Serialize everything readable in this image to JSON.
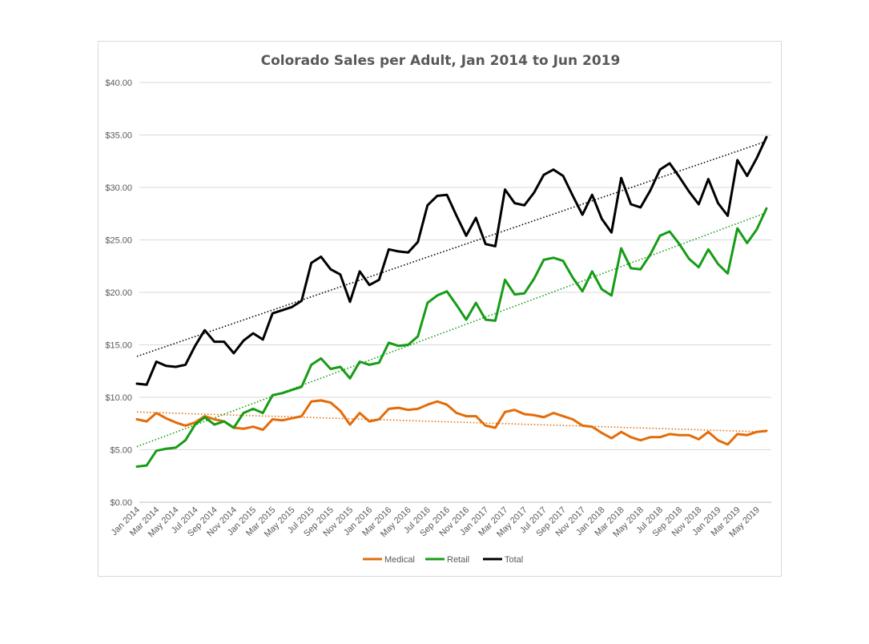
{
  "chart_data": {
    "type": "line",
    "title": "Colorado  Sales per Adult, Jan 2014 to Jun 2019",
    "xlabel": "",
    "ylabel": "",
    "ylim": [
      0,
      40
    ],
    "y_ticks": [
      "$0.00",
      "$5.00",
      "$10.00",
      "$15.00",
      "$20.00",
      "$25.00",
      "$30.00",
      "$35.00",
      "$40.00"
    ],
    "x_tick_labels": [
      "Jan 2014",
      "Mar 2014",
      "May 2014",
      "Jul 2014",
      "Sep 2014",
      "Nov 2014",
      "Jan 2015",
      "Mar 2015",
      "May 2015",
      "Jul 2015",
      "Sep 2015",
      "Nov 2015",
      "Jan 2016",
      "Mar 2016",
      "May 2016",
      "Jul 2016",
      "Sep 2016",
      "Nov 2016",
      "Jan 2017",
      "Mar 2017",
      "May 2017",
      "Jul 2017",
      "Sep 2017",
      "Nov 2017",
      "Jan 2018",
      "Mar 2018",
      "May 2018",
      "Jul 2018",
      "Sep 2018",
      "Nov 2018",
      "Jan 2019",
      "Mar 2019",
      "May 2019"
    ],
    "grid": true,
    "legend_position": "bottom",
    "series": [
      {
        "name": "Medical",
        "color": "#e36c09",
        "values": [
          7.9,
          7.7,
          8.5,
          8.0,
          7.6,
          7.3,
          7.6,
          8.2,
          7.9,
          7.7,
          7.1,
          7.0,
          7.2,
          6.9,
          7.9,
          7.8,
          8.0,
          8.2,
          9.6,
          9.7,
          9.5,
          8.7,
          7.4,
          8.5,
          7.7,
          7.9,
          8.9,
          9.0,
          8.8,
          8.9,
          9.3,
          9.6,
          9.3,
          8.5,
          8.2,
          8.2,
          7.3,
          7.1,
          8.6,
          8.8,
          8.4,
          8.3,
          8.1,
          8.5,
          8.2,
          7.9,
          7.3,
          7.2,
          6.6,
          6.1,
          6.7,
          6.2,
          5.9,
          6.2,
          6.2,
          6.5,
          6.4,
          6.4,
          6.0,
          6.7,
          5.9,
          5.5,
          6.5,
          6.4,
          6.7,
          6.8
        ]
      },
      {
        "name": "Retail",
        "color": "#169c16",
        "values": [
          3.4,
          3.5,
          4.9,
          5.1,
          5.2,
          5.9,
          7.4,
          8.1,
          7.4,
          7.7,
          7.1,
          8.5,
          8.9,
          8.5,
          10.2,
          10.4,
          10.7,
          11.0,
          13.1,
          13.7,
          12.7,
          12.9,
          11.8,
          13.4,
          13.1,
          13.3,
          15.2,
          14.9,
          15.0,
          15.8,
          19.0,
          19.7,
          20.1,
          18.8,
          17.4,
          19.0,
          17.4,
          17.3,
          21.2,
          19.8,
          19.9,
          21.3,
          23.1,
          23.3,
          23.0,
          21.4,
          20.1,
          22.0,
          20.3,
          19.7,
          24.2,
          22.3,
          22.2,
          23.6,
          25.4,
          25.8,
          24.6,
          23.2,
          22.4,
          24.1,
          22.7,
          21.8,
          26.1,
          24.7,
          26.0,
          28.0
        ]
      },
      {
        "name": "Total",
        "color": "#000000",
        "values": [
          11.3,
          11.2,
          13.4,
          13.0,
          12.9,
          13.1,
          14.9,
          16.4,
          15.3,
          15.3,
          14.2,
          15.4,
          16.1,
          15.5,
          18.0,
          18.3,
          18.6,
          19.2,
          22.8,
          23.4,
          22.2,
          21.7,
          19.1,
          22.0,
          20.7,
          21.2,
          24.1,
          23.9,
          23.8,
          24.8,
          28.3,
          29.2,
          29.3,
          27.3,
          25.4,
          27.1,
          24.6,
          24.4,
          29.8,
          28.5,
          28.3,
          29.5,
          31.2,
          31.7,
          31.1,
          29.2,
          27.4,
          29.3,
          27.0,
          25.7,
          30.9,
          28.4,
          28.1,
          29.7,
          31.7,
          32.3,
          31.0,
          29.6,
          28.4,
          30.8,
          28.5,
          27.3,
          32.6,
          31.1,
          32.8,
          34.8
        ]
      }
    ],
    "trendlines": [
      {
        "series": "Medical",
        "color": "#e36c09",
        "start": 8.6,
        "end": 6.7
      },
      {
        "series": "Retail",
        "color": "#169c16",
        "start": 5.3,
        "end": 27.6
      },
      {
        "series": "Total",
        "color": "#000000",
        "start": 13.9,
        "end": 34.4
      }
    ]
  }
}
